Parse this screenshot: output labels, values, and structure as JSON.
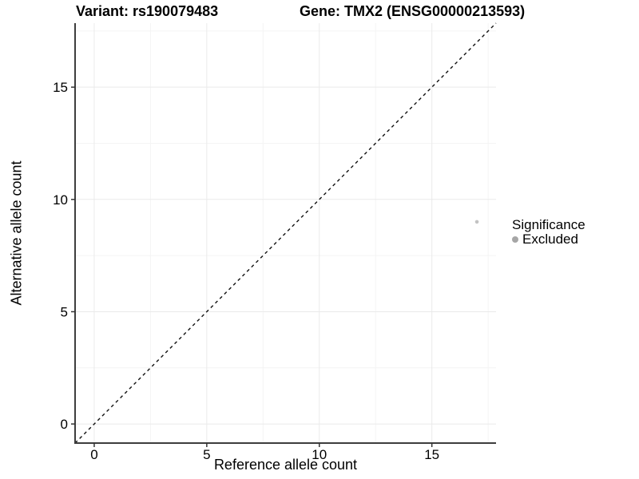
{
  "chart_data": {
    "type": "scatter",
    "title_variant": "Variant: rs190079483",
    "title_gene": "Gene: TMX2 (ENSG00000213593)",
    "xlabel": "Reference allele count",
    "ylabel": "Alternative allele count",
    "xlim": [
      -0.85,
      17.85
    ],
    "ylim": [
      -0.85,
      17.85
    ],
    "x_ticks": [
      0,
      5,
      10,
      15
    ],
    "y_ticks": [
      0,
      5,
      10,
      15
    ],
    "x_minor_ticks": [
      2.5,
      7.5,
      12.5,
      17.5
    ],
    "y_minor_ticks": [
      2.5,
      7.5,
      12.5,
      17.5
    ],
    "grid": true,
    "points": [
      {
        "x": 17,
        "y": 9,
        "group": "Excluded"
      }
    ],
    "identity_line": {
      "slope": 1,
      "intercept": 0,
      "style": "dashed",
      "color": "#111111"
    },
    "legend": {
      "title": "Significance",
      "position": "right",
      "items": [
        {
          "label": "Excluded",
          "color": "#a6a6a6"
        }
      ]
    },
    "colors": {
      "point": "#c3c3c3",
      "grid_major": "#eaeaea",
      "grid_minor": "#f4f4f4",
      "axis_line": "#3d3d3d",
      "tick_mark": "#333333",
      "tick_label": "#000000",
      "background": "#ffffff"
    }
  }
}
